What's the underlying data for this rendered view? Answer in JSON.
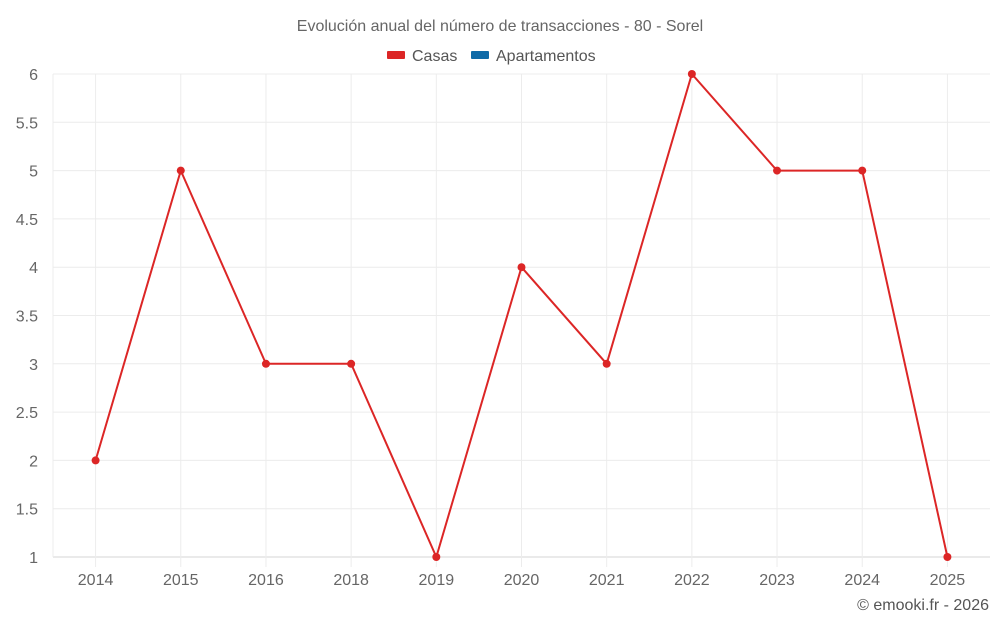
{
  "chart_data": {
    "type": "line",
    "title": "Evolución anual del número de transacciones - 80 - Sorel",
    "xlabel": "",
    "ylabel": "",
    "categories": [
      "2014",
      "2015",
      "2016",
      "2018",
      "2019",
      "2020",
      "2021",
      "2022",
      "2023",
      "2024",
      "2025"
    ],
    "series": [
      {
        "name": "Casas",
        "color": "#dc2626",
        "values": [
          2,
          5,
          3,
          3,
          1,
          4,
          3,
          6,
          5,
          5,
          1
        ]
      },
      {
        "name": "Apartamentos",
        "color": "#0e6aa8",
        "values": []
      }
    ],
    "ylim": [
      1,
      6
    ],
    "yticks": [
      "1",
      "1.5",
      "2",
      "2.5",
      "3",
      "3.5",
      "4",
      "4.5",
      "5",
      "5.5",
      "6"
    ],
    "grid": true,
    "legend_position": "top"
  },
  "credit": "© emooki.fr - 2026"
}
